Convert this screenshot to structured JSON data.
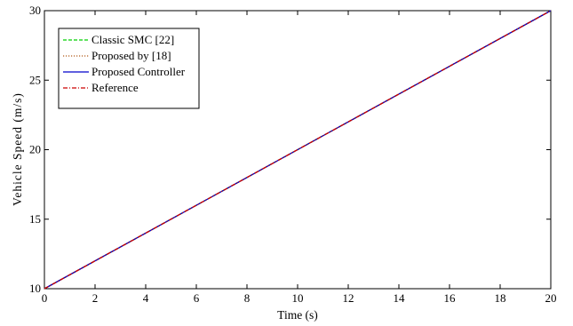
{
  "chart_data": {
    "type": "line",
    "xlabel": "Time (s)",
    "ylabel": "Vehicle Speed (m/s)",
    "xlim": [
      0,
      20
    ],
    "ylim": [
      10,
      30
    ],
    "xticks": [
      0,
      2,
      4,
      6,
      8,
      10,
      12,
      14,
      16,
      18,
      20
    ],
    "yticks": [
      10,
      15,
      20,
      25,
      30
    ],
    "grid": false,
    "legend_position": "top-left",
    "series": [
      {
        "name": "Classic SMC [22]",
        "color": "#00d000",
        "style": "dashed",
        "x": [
          0,
          20
        ],
        "y": [
          10,
          30
        ]
      },
      {
        "name": "Proposed by [18]",
        "color": "#b05a1a",
        "style": "dotted",
        "x": [
          0,
          20
        ],
        "y": [
          10,
          30
        ]
      },
      {
        "name": "Proposed Controller",
        "color": "#0000cc",
        "style": "solid",
        "x": [
          0,
          20
        ],
        "y": [
          10,
          30
        ]
      },
      {
        "name": "Reference",
        "color": "#cc0000",
        "style": "dashdot",
        "x": [
          0,
          20
        ],
        "y": [
          10,
          30
        ]
      }
    ]
  }
}
